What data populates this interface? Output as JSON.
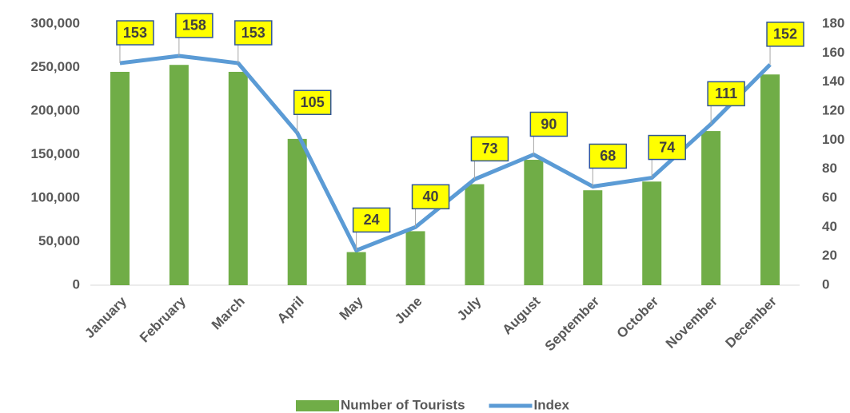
{
  "chart_data": {
    "type": "combo",
    "categories": [
      "January",
      "February",
      "March",
      "April",
      "May",
      "June",
      "July",
      "August",
      "September",
      "October",
      "November",
      "December"
    ],
    "series": [
      {
        "name": "Number of Tourists",
        "type": "bar",
        "color": "#70ad47",
        "values": [
          245000,
          253000,
          245000,
          168000,
          38000,
          62000,
          116000,
          144000,
          109000,
          119000,
          177000,
          242000
        ]
      },
      {
        "name": "Index",
        "type": "line",
        "axis": "y2",
        "color": "#5b9bd5",
        "values": [
          153,
          158,
          153,
          105,
          24,
          40,
          73,
          90,
          68,
          74,
          111,
          152
        ]
      }
    ],
    "ylim": [
      0,
      300000
    ],
    "yticks": [
      0,
      {
        "value": 50000,
        "label": "50,000"
      },
      {
        "value": 100000,
        "label": "100,000"
      },
      {
        "value": 150000,
        "label": "150,000"
      },
      {
        "value": 200000,
        "label": "200,000"
      },
      {
        "value": 250000,
        "label": "250,000"
      },
      {
        "value": 300000,
        "label": "300,000"
      }
    ],
    "y2lim": [
      0,
      180
    ],
    "y2ticks": [
      0,
      20,
      40,
      60,
      80,
      100,
      120,
      140,
      160,
      180
    ],
    "legend": "bottom"
  }
}
